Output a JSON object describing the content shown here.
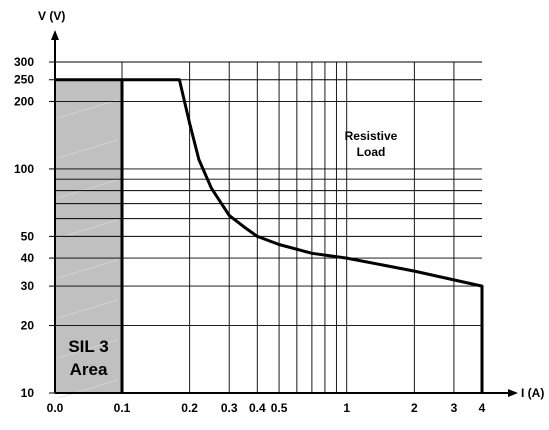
{
  "chart_data": {
    "type": "line",
    "ylabel": "V (V)",
    "xlabel": "I (A)",
    "x_scale": "log",
    "y_scale": "log",
    "ylim": [
      10,
      300
    ],
    "y_ticks": [
      {
        "value": 10,
        "label": "10"
      },
      {
        "value": 20,
        "label": "20"
      },
      {
        "value": 30,
        "label": "30"
      },
      {
        "value": 40,
        "label": "40"
      },
      {
        "value": 50,
        "label": "50"
      },
      {
        "value": 100,
        "label": "100"
      },
      {
        "value": 200,
        "label": "200"
      },
      {
        "value": 250,
        "label": "250"
      },
      {
        "value": 300,
        "label": "300"
      }
    ],
    "y_grid": [
      20,
      30,
      40,
      50,
      60,
      70,
      80,
      90,
      100,
      200,
      250,
      300
    ],
    "x_ticks": [
      {
        "value": 0.0,
        "label": "0.0"
      },
      {
        "value": 0.1,
        "label": "0.1"
      },
      {
        "value": 0.2,
        "label": "0.2"
      },
      {
        "value": 0.3,
        "label": "0.3"
      },
      {
        "value": 0.4,
        "label": "0.4"
      },
      {
        "value": 0.5,
        "label": "0.5"
      },
      {
        "value": 1,
        "label": "1"
      },
      {
        "value": 2,
        "label": "2"
      },
      {
        "value": 3,
        "label": "3"
      },
      {
        "value": 4,
        "label": "4"
      }
    ],
    "x_grid": [
      0.1,
      0.2,
      0.3,
      0.4,
      0.5,
      0.6,
      0.7,
      0.8,
      0.9,
      1,
      2,
      3
    ],
    "grid": true,
    "series": [
      {
        "name": "",
        "x": [
          0.1,
          0.18,
          0.2,
          0.22,
          0.25,
          0.3,
          0.35,
          0.4,
          0.5,
          0.7,
          1,
          2,
          4,
          4
        ],
        "y": [
          250,
          250,
          160,
          110,
          82,
          62,
          55,
          50,
          46,
          42,
          40,
          35,
          30,
          10
        ]
      }
    ],
    "annotations": [
      {
        "lines": [
          "Resistive",
          "Load"
        ]
      }
    ],
    "shaded_region": {
      "x_range": [
        0.0,
        0.1
      ],
      "y_range": [
        10,
        250
      ],
      "color": "#c0c0c0",
      "lines": [
        "SIL 3",
        "Area"
      ]
    }
  }
}
